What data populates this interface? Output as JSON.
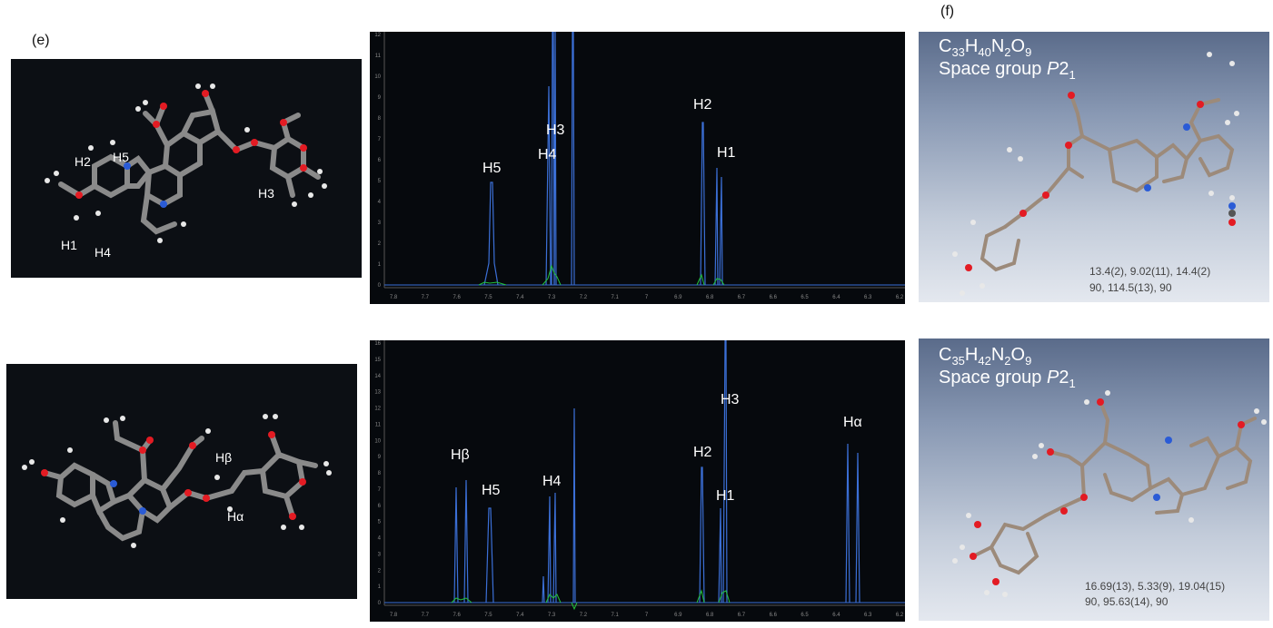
{
  "labels": {
    "e": "(e)",
    "f": "(f)"
  },
  "top": {
    "molecule_labels": {
      "h2": "H2",
      "h5": "H5",
      "h3": "H3",
      "h1": "H1",
      "h4": "H4"
    },
    "spectrum": {
      "peak_labels": {
        "h5": "H5",
        "h4": "H4",
        "h3": "H3",
        "h2": "H2",
        "h1": "H1"
      },
      "x_ticks": [
        "7.8",
        "7.7",
        "7.6",
        "7.5",
        "7.4",
        "7.3",
        "7.2",
        "7.1",
        "7",
        "6.9",
        "6.8",
        "6.7",
        "6.6",
        "6.5",
        "6.4",
        "6.3",
        "6.2"
      ],
      "y_ticks": [
        "0",
        "1",
        "2",
        "3",
        "4",
        "5",
        "6",
        "7",
        "8",
        "9",
        "10",
        "11",
        "12"
      ]
    },
    "crystal": {
      "formula": {
        "c": "C",
        "c_n": "33",
        "h": "H",
        "h_n": "40",
        "n": "N",
        "n_n": "2",
        "o": "O",
        "o_n": "9"
      },
      "space_group_prefix": "Space group ",
      "space_group_p": "P",
      "space_group_num": "2",
      "space_group_sub": "1",
      "cell_lengths": "13.4(2), 9.02(11), 14.4(2)",
      "cell_angles": "90, 114.5(13), 90"
    }
  },
  "bottom": {
    "molecule_labels": {
      "hb": "Hβ",
      "ha": "Hα"
    },
    "spectrum": {
      "peak_labels": {
        "hb": "Hβ",
        "h5": "H5",
        "h4": "H4",
        "h2": "H2",
        "h3": "H3",
        "h1": "H1",
        "ha": "Hα"
      },
      "x_ticks": [
        "7.8",
        "7.7",
        "7.6",
        "7.5",
        "7.4",
        "7.3",
        "7.2",
        "7.1",
        "7",
        "6.9",
        "6.8",
        "6.7",
        "6.6",
        "6.5",
        "6.4",
        "6.3",
        "6.2"
      ],
      "y_ticks": [
        "0",
        "1",
        "2",
        "3",
        "4",
        "5",
        "6",
        "7",
        "8",
        "9",
        "10",
        "11",
        "12",
        "13",
        "14",
        "15",
        "16"
      ]
    },
    "crystal": {
      "formula": {
        "c": "C",
        "c_n": "35",
        "h": "H",
        "h_n": "42",
        "n": "N",
        "n_n": "2",
        "o": "O",
        "o_n": "9"
      },
      "space_group_prefix": "Space group ",
      "space_group_p": "P",
      "space_group_num": "2",
      "space_group_sub": "1",
      "cell_lengths": "16.69(13), 5.33(9), 19.04(15)",
      "cell_angles": "90, 95.63(14), 90"
    }
  },
  "colors": {
    "spectrum_blue": "#3b6fd6",
    "spectrum_green": "#23c23a",
    "spectrum_red": "#c03030"
  }
}
